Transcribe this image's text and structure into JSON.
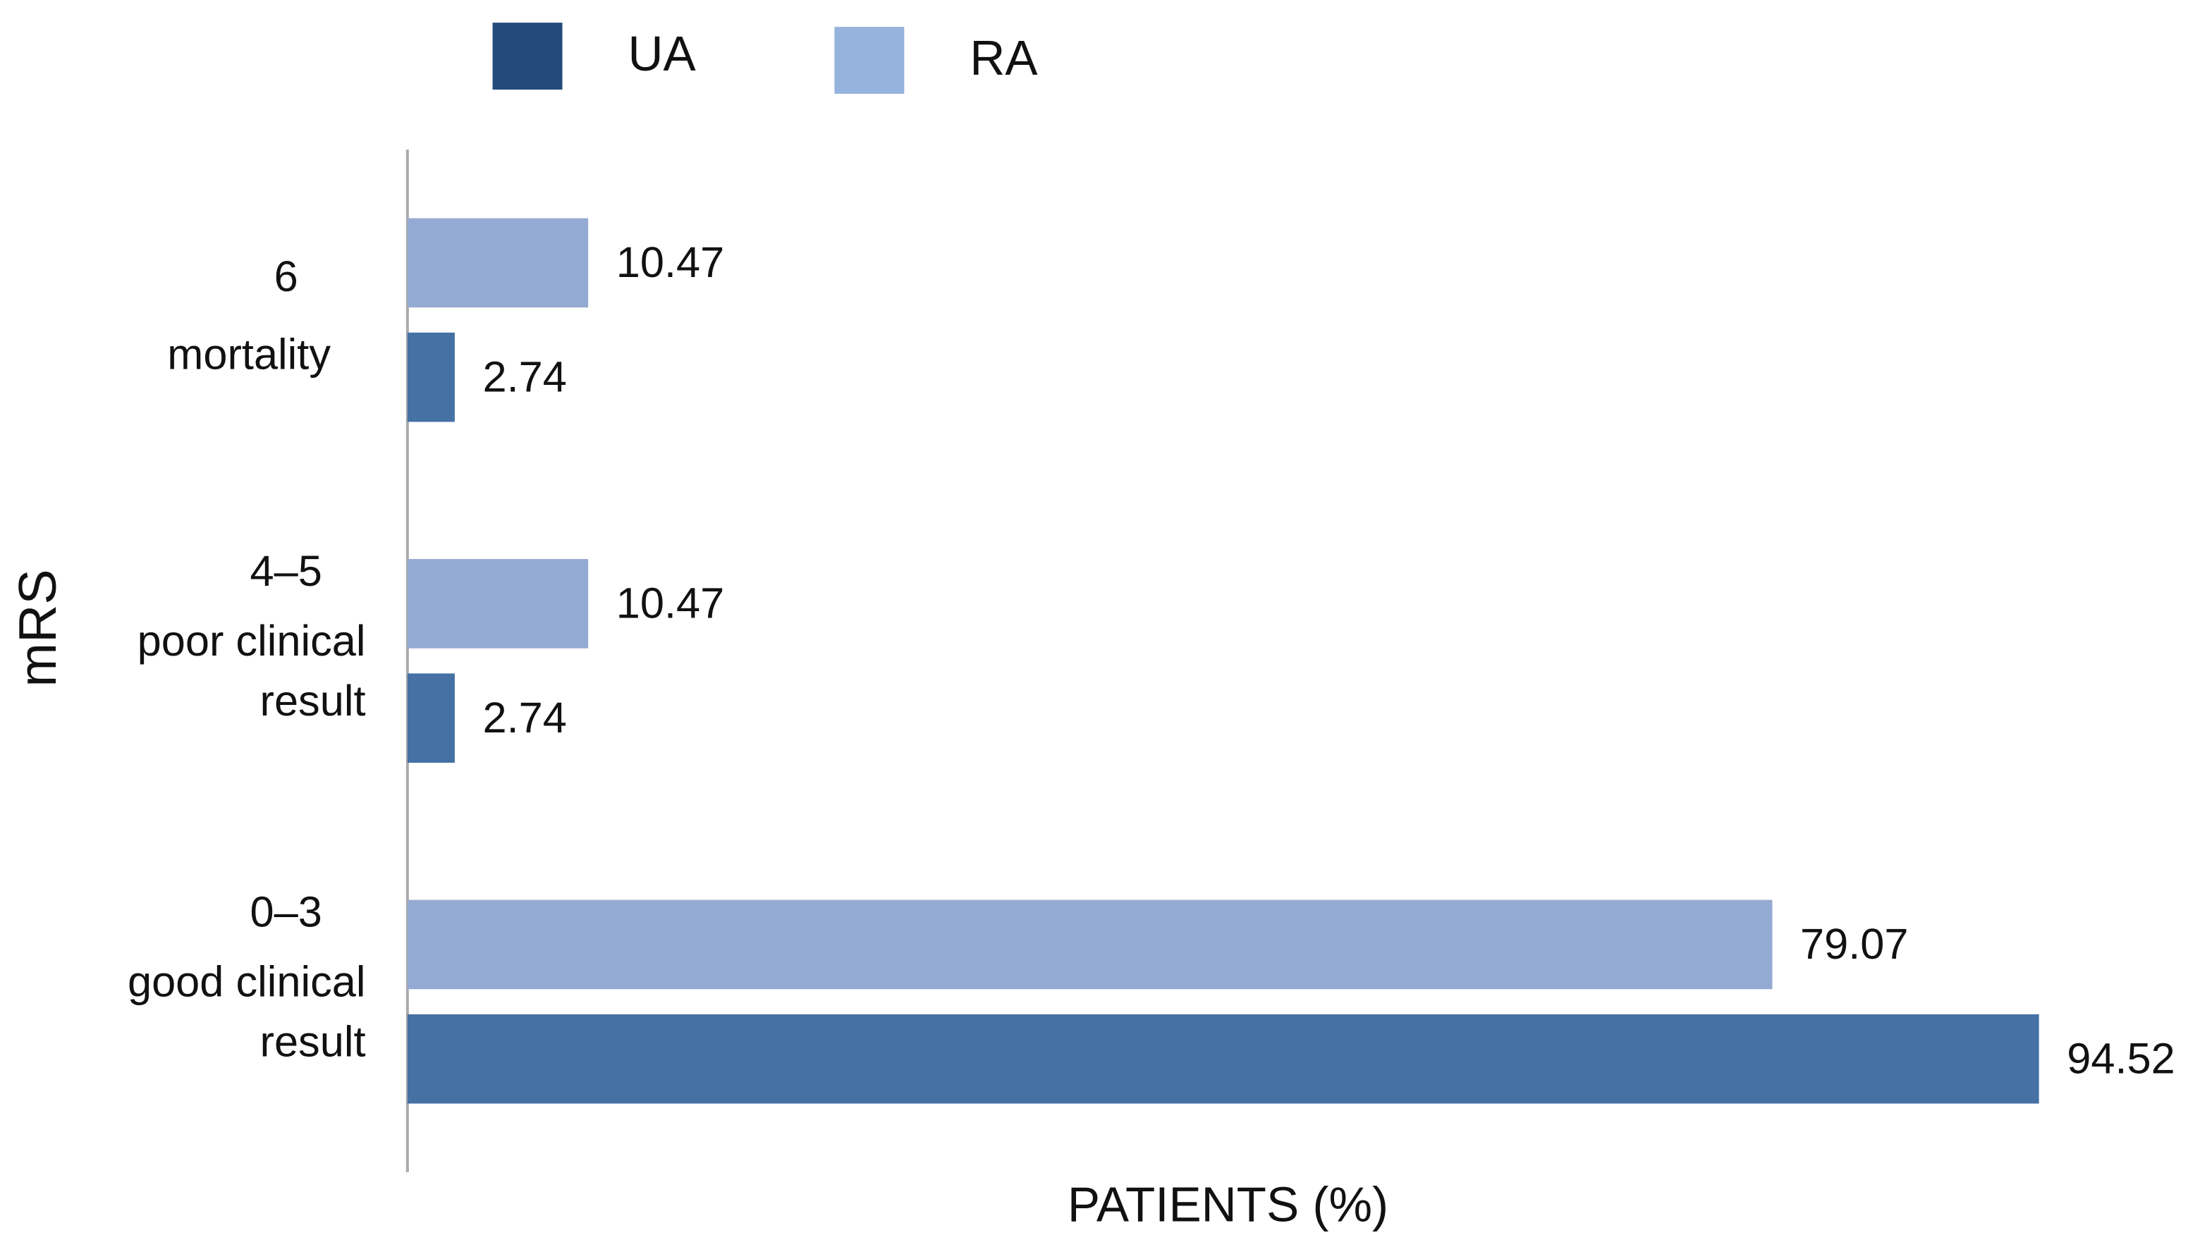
{
  "chart_data": {
    "type": "hbar",
    "x_label": "PATIENTS (%)",
    "y_label": "mRS",
    "categories": [
      [
        "6",
        "mortality"
      ],
      [
        "4–5",
        "poor clinical",
        "result"
      ],
      [
        "0–3",
        "good clinical",
        "result"
      ]
    ],
    "series": [
      {
        "name": "UA",
        "color": "#4571a5",
        "legend_color": "#234a7b",
        "values": [
          2.74,
          2.74,
          94.52
        ]
      },
      {
        "name": "RA",
        "color": "#95aad2",
        "legend_color": "#95b3dc",
        "values": [
          10.47,
          10.47,
          79.07
        ]
      }
    ],
    "xlim": [
      0,
      100
    ],
    "legend": "top"
  }
}
